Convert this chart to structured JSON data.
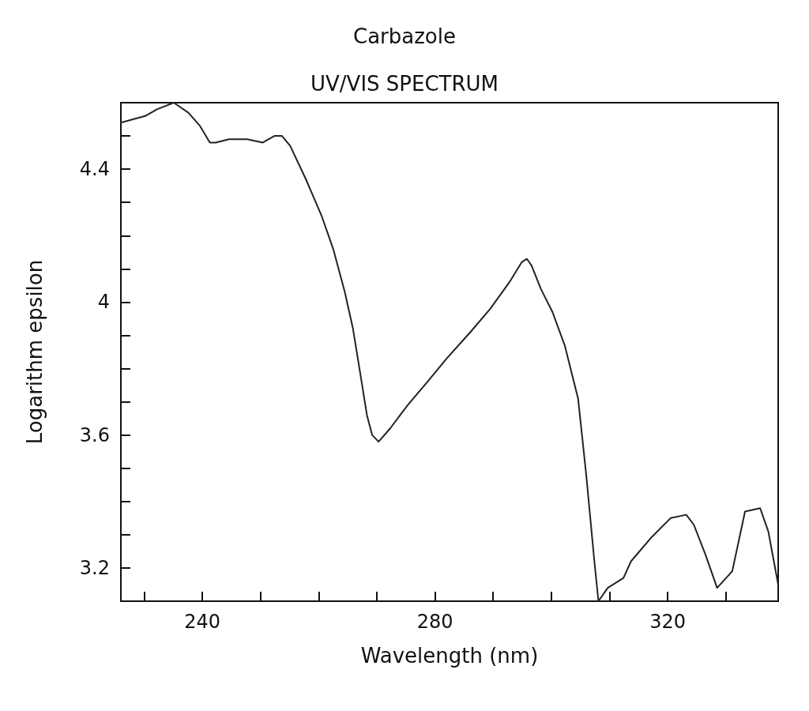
{
  "chart_data": {
    "type": "line",
    "title": "Carbazole",
    "subtitle": "UV/VIS SPECTRUM",
    "xlabel": "Wavelength (nm)",
    "ylabel": "Logarithm epsilon",
    "xlim": [
      226,
      339
    ],
    "ylim": [
      3.1,
      4.6
    ],
    "xticks": [
      {
        "value": 230,
        "label": null
      },
      240,
      {
        "value": 250,
        "label": null
      },
      {
        "value": 260,
        "label": null
      },
      {
        "value": 270,
        "label": null
      },
      280,
      {
        "value": 290,
        "label": null
      },
      {
        "value": 300,
        "label": null
      },
      {
        "value": 310,
        "label": null
      },
      320,
      {
        "value": 330,
        "label": null
      }
    ],
    "yticks": [
      3.2,
      {
        "value": 3.3,
        "label": null
      },
      {
        "value": 3.4,
        "label": null
      },
      {
        "value": 3.5,
        "label": null
      },
      3.6,
      {
        "value": 3.7,
        "label": null
      },
      {
        "value": 3.8,
        "label": null
      },
      {
        "value": 3.9,
        "label": null
      },
      4,
      {
        "value": 4.1,
        "label": null
      },
      {
        "value": 4.2,
        "label": null
      },
      {
        "value": 4.3,
        "label": null
      },
      4.4,
      {
        "value": 4.5,
        "label": null
      }
    ],
    "grid": false,
    "marker": "none",
    "line_style": "solid",
    "series": [
      {
        "color": "#222222",
        "x": [
          226.0,
          230.2,
          232.2,
          235.1,
          237.6,
          239.6,
          241.3,
          242.3,
          244.6,
          247.7,
          250.4,
          252.4,
          253.7,
          255.1,
          257.8,
          260.5,
          262.5,
          264.5,
          265.9,
          267.2,
          268.3,
          269.2,
          270.3,
          272.3,
          275.3,
          278.7,
          282.0,
          286.1,
          289.5,
          292.8,
          294.9,
          295.8,
          296.6,
          298.2,
          300.2,
          302.3,
          304.6,
          306.0,
          307.4,
          308.1,
          309.7,
          312.4,
          313.7,
          317.1,
          320.5,
          323.2,
          324.5,
          326.5,
          328.5,
          331.1,
          333.3,
          335.9,
          337.3,
          339.0
        ],
        "values": [
          4.54,
          4.56,
          4.58,
          4.6,
          4.57,
          4.53,
          4.48,
          4.48,
          4.49,
          4.49,
          4.48,
          4.5,
          4.5,
          4.47,
          4.37,
          4.26,
          4.16,
          4.03,
          3.92,
          3.78,
          3.66,
          3.6,
          3.58,
          3.62,
          3.69,
          3.76,
          3.83,
          3.91,
          3.98,
          4.06,
          4.12,
          4.13,
          4.11,
          4.04,
          3.97,
          3.87,
          3.71,
          3.48,
          3.22,
          3.1,
          3.14,
          3.17,
          3.22,
          3.29,
          3.35,
          3.36,
          3.33,
          3.24,
          3.14,
          3.19,
          3.37,
          3.38,
          3.31,
          3.15
        ]
      }
    ]
  }
}
